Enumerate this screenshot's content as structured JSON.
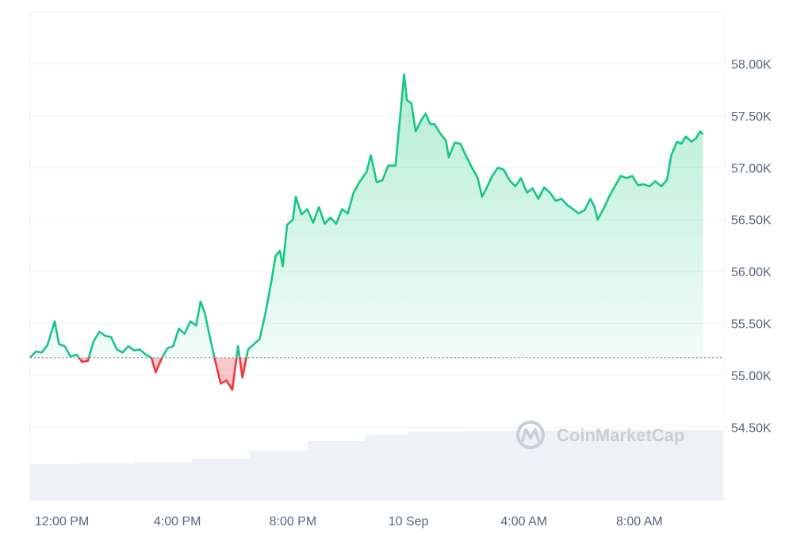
{
  "chart_data": {
    "type": "area",
    "baseline": 55170,
    "ylim": [
      53800,
      58500
    ],
    "y_ticks": [
      {
        "value": 54500,
        "label": "54.50K"
      },
      {
        "value": 55000,
        "label": "55.00K"
      },
      {
        "value": 55500,
        "label": "55.50K"
      },
      {
        "value": 56000,
        "label": "56.00K"
      },
      {
        "value": 56500,
        "label": "56.50K"
      },
      {
        "value": 57000,
        "label": "57.00K"
      },
      {
        "value": 57500,
        "label": "57.50K"
      },
      {
        "value": 58000,
        "label": "58.00K"
      }
    ],
    "x_ticks": [
      {
        "hour": 12,
        "label": "12:00 PM"
      },
      {
        "hour": 16,
        "label": "4:00 PM"
      },
      {
        "hour": 20,
        "label": "8:00 PM"
      },
      {
        "hour": 24,
        "label": "10 Sep"
      },
      {
        "hour": 28,
        "label": "4:00 AM"
      },
      {
        "hour": 32,
        "label": "8:00 AM"
      }
    ],
    "xlim": [
      10.9,
      34.9
    ],
    "price": [
      [
        10.9,
        55170
      ],
      [
        11.1,
        55230
      ],
      [
        11.3,
        55220
      ],
      [
        11.5,
        55290
      ],
      [
        11.75,
        55520
      ],
      [
        11.9,
        55300
      ],
      [
        12.1,
        55280
      ],
      [
        12.3,
        55180
      ],
      [
        12.5,
        55200
      ],
      [
        12.7,
        55130
      ],
      [
        12.9,
        55140
      ],
      [
        13.1,
        55330
      ],
      [
        13.3,
        55420
      ],
      [
        13.5,
        55380
      ],
      [
        13.7,
        55370
      ],
      [
        13.9,
        55250
      ],
      [
        14.1,
        55220
      ],
      [
        14.3,
        55280
      ],
      [
        14.5,
        55240
      ],
      [
        14.7,
        55250
      ],
      [
        14.9,
        55200
      ],
      [
        15.1,
        55170
      ],
      [
        15.25,
        55030
      ],
      [
        15.45,
        55160
      ],
      [
        15.65,
        55260
      ],
      [
        15.85,
        55280
      ],
      [
        16.05,
        55450
      ],
      [
        16.25,
        55400
      ],
      [
        16.45,
        55520
      ],
      [
        16.65,
        55480
      ],
      [
        16.8,
        55710
      ],
      [
        16.95,
        55600
      ],
      [
        17.1,
        55400
      ],
      [
        17.3,
        55150
      ],
      [
        17.5,
        54920
      ],
      [
        17.7,
        54950
      ],
      [
        17.9,
        54860
      ],
      [
        18.1,
        55280
      ],
      [
        18.25,
        54980
      ],
      [
        18.45,
        55250
      ],
      [
        18.65,
        55300
      ],
      [
        18.85,
        55350
      ],
      [
        19.05,
        55600
      ],
      [
        19.25,
        55900
      ],
      [
        19.4,
        56150
      ],
      [
        19.55,
        56200
      ],
      [
        19.65,
        56050
      ],
      [
        19.8,
        56450
      ],
      [
        20.0,
        56500
      ],
      [
        20.1,
        56720
      ],
      [
        20.3,
        56550
      ],
      [
        20.5,
        56600
      ],
      [
        20.7,
        56470
      ],
      [
        20.9,
        56620
      ],
      [
        21.1,
        56460
      ],
      [
        21.3,
        56520
      ],
      [
        21.5,
        56460
      ],
      [
        21.7,
        56600
      ],
      [
        21.9,
        56560
      ],
      [
        22.1,
        56760
      ],
      [
        22.3,
        56860
      ],
      [
        22.55,
        56960
      ],
      [
        22.7,
        57120
      ],
      [
        22.9,
        56860
      ],
      [
        23.1,
        56880
      ],
      [
        23.3,
        57020
      ],
      [
        23.55,
        57020
      ],
      [
        23.7,
        57450
      ],
      [
        23.85,
        57900
      ],
      [
        23.95,
        57650
      ],
      [
        24.1,
        57620
      ],
      [
        24.25,
        57350
      ],
      [
        24.45,
        57460
      ],
      [
        24.6,
        57520
      ],
      [
        24.75,
        57420
      ],
      [
        24.9,
        57420
      ],
      [
        25.1,
        57330
      ],
      [
        25.3,
        57260
      ],
      [
        25.4,
        57100
      ],
      [
        25.6,
        57240
      ],
      [
        25.8,
        57230
      ],
      [
        26.0,
        57110
      ],
      [
        26.2,
        57000
      ],
      [
        26.4,
        56900
      ],
      [
        26.55,
        56720
      ],
      [
        26.7,
        56800
      ],
      [
        26.9,
        56920
      ],
      [
        27.1,
        57000
      ],
      [
        27.3,
        56980
      ],
      [
        27.5,
        56880
      ],
      [
        27.7,
        56820
      ],
      [
        27.9,
        56900
      ],
      [
        28.1,
        56760
      ],
      [
        28.3,
        56800
      ],
      [
        28.5,
        56700
      ],
      [
        28.7,
        56810
      ],
      [
        28.9,
        56760
      ],
      [
        29.1,
        56680
      ],
      [
        29.3,
        56700
      ],
      [
        29.5,
        56640
      ],
      [
        29.7,
        56600
      ],
      [
        29.9,
        56560
      ],
      [
        30.1,
        56590
      ],
      [
        30.3,
        56700
      ],
      [
        30.45,
        56620
      ],
      [
        30.55,
        56500
      ],
      [
        30.75,
        56600
      ],
      [
        30.95,
        56720
      ],
      [
        31.15,
        56820
      ],
      [
        31.35,
        56920
      ],
      [
        31.55,
        56900
      ],
      [
        31.75,
        56920
      ],
      [
        31.95,
        56830
      ],
      [
        32.15,
        56840
      ],
      [
        32.35,
        56820
      ],
      [
        32.55,
        56870
      ],
      [
        32.75,
        56820
      ],
      [
        32.95,
        56880
      ],
      [
        33.1,
        57120
      ],
      [
        33.3,
        57250
      ],
      [
        33.45,
        57230
      ],
      [
        33.6,
        57300
      ],
      [
        33.8,
        57250
      ],
      [
        33.95,
        57280
      ],
      [
        34.1,
        57350
      ],
      [
        34.2,
        57320
      ]
    ],
    "volume_level": [
      [
        10.9,
        0.45
      ],
      [
        12.5,
        0.46
      ],
      [
        14.5,
        0.48
      ],
      [
        16.5,
        0.52
      ],
      [
        18.5,
        0.62
      ],
      [
        20.5,
        0.74
      ],
      [
        22.5,
        0.82
      ],
      [
        24.0,
        0.86
      ],
      [
        26.0,
        0.87
      ],
      [
        30.0,
        0.88
      ],
      [
        34.9,
        0.9
      ]
    ],
    "colors": {
      "up_line": "#16c784",
      "down_line": "#ea3943",
      "up_fill": "#16c784",
      "down_fill": "#ea3943",
      "grid": "#eff2f5",
      "axis_text": "#58667e",
      "baseline": "#8a939f",
      "volume": "#eef1f5",
      "watermark": "#c9cfd9"
    }
  },
  "watermark": {
    "text": "CoinMarketCap",
    "icon": "coinmarketcap-logo-icon"
  }
}
